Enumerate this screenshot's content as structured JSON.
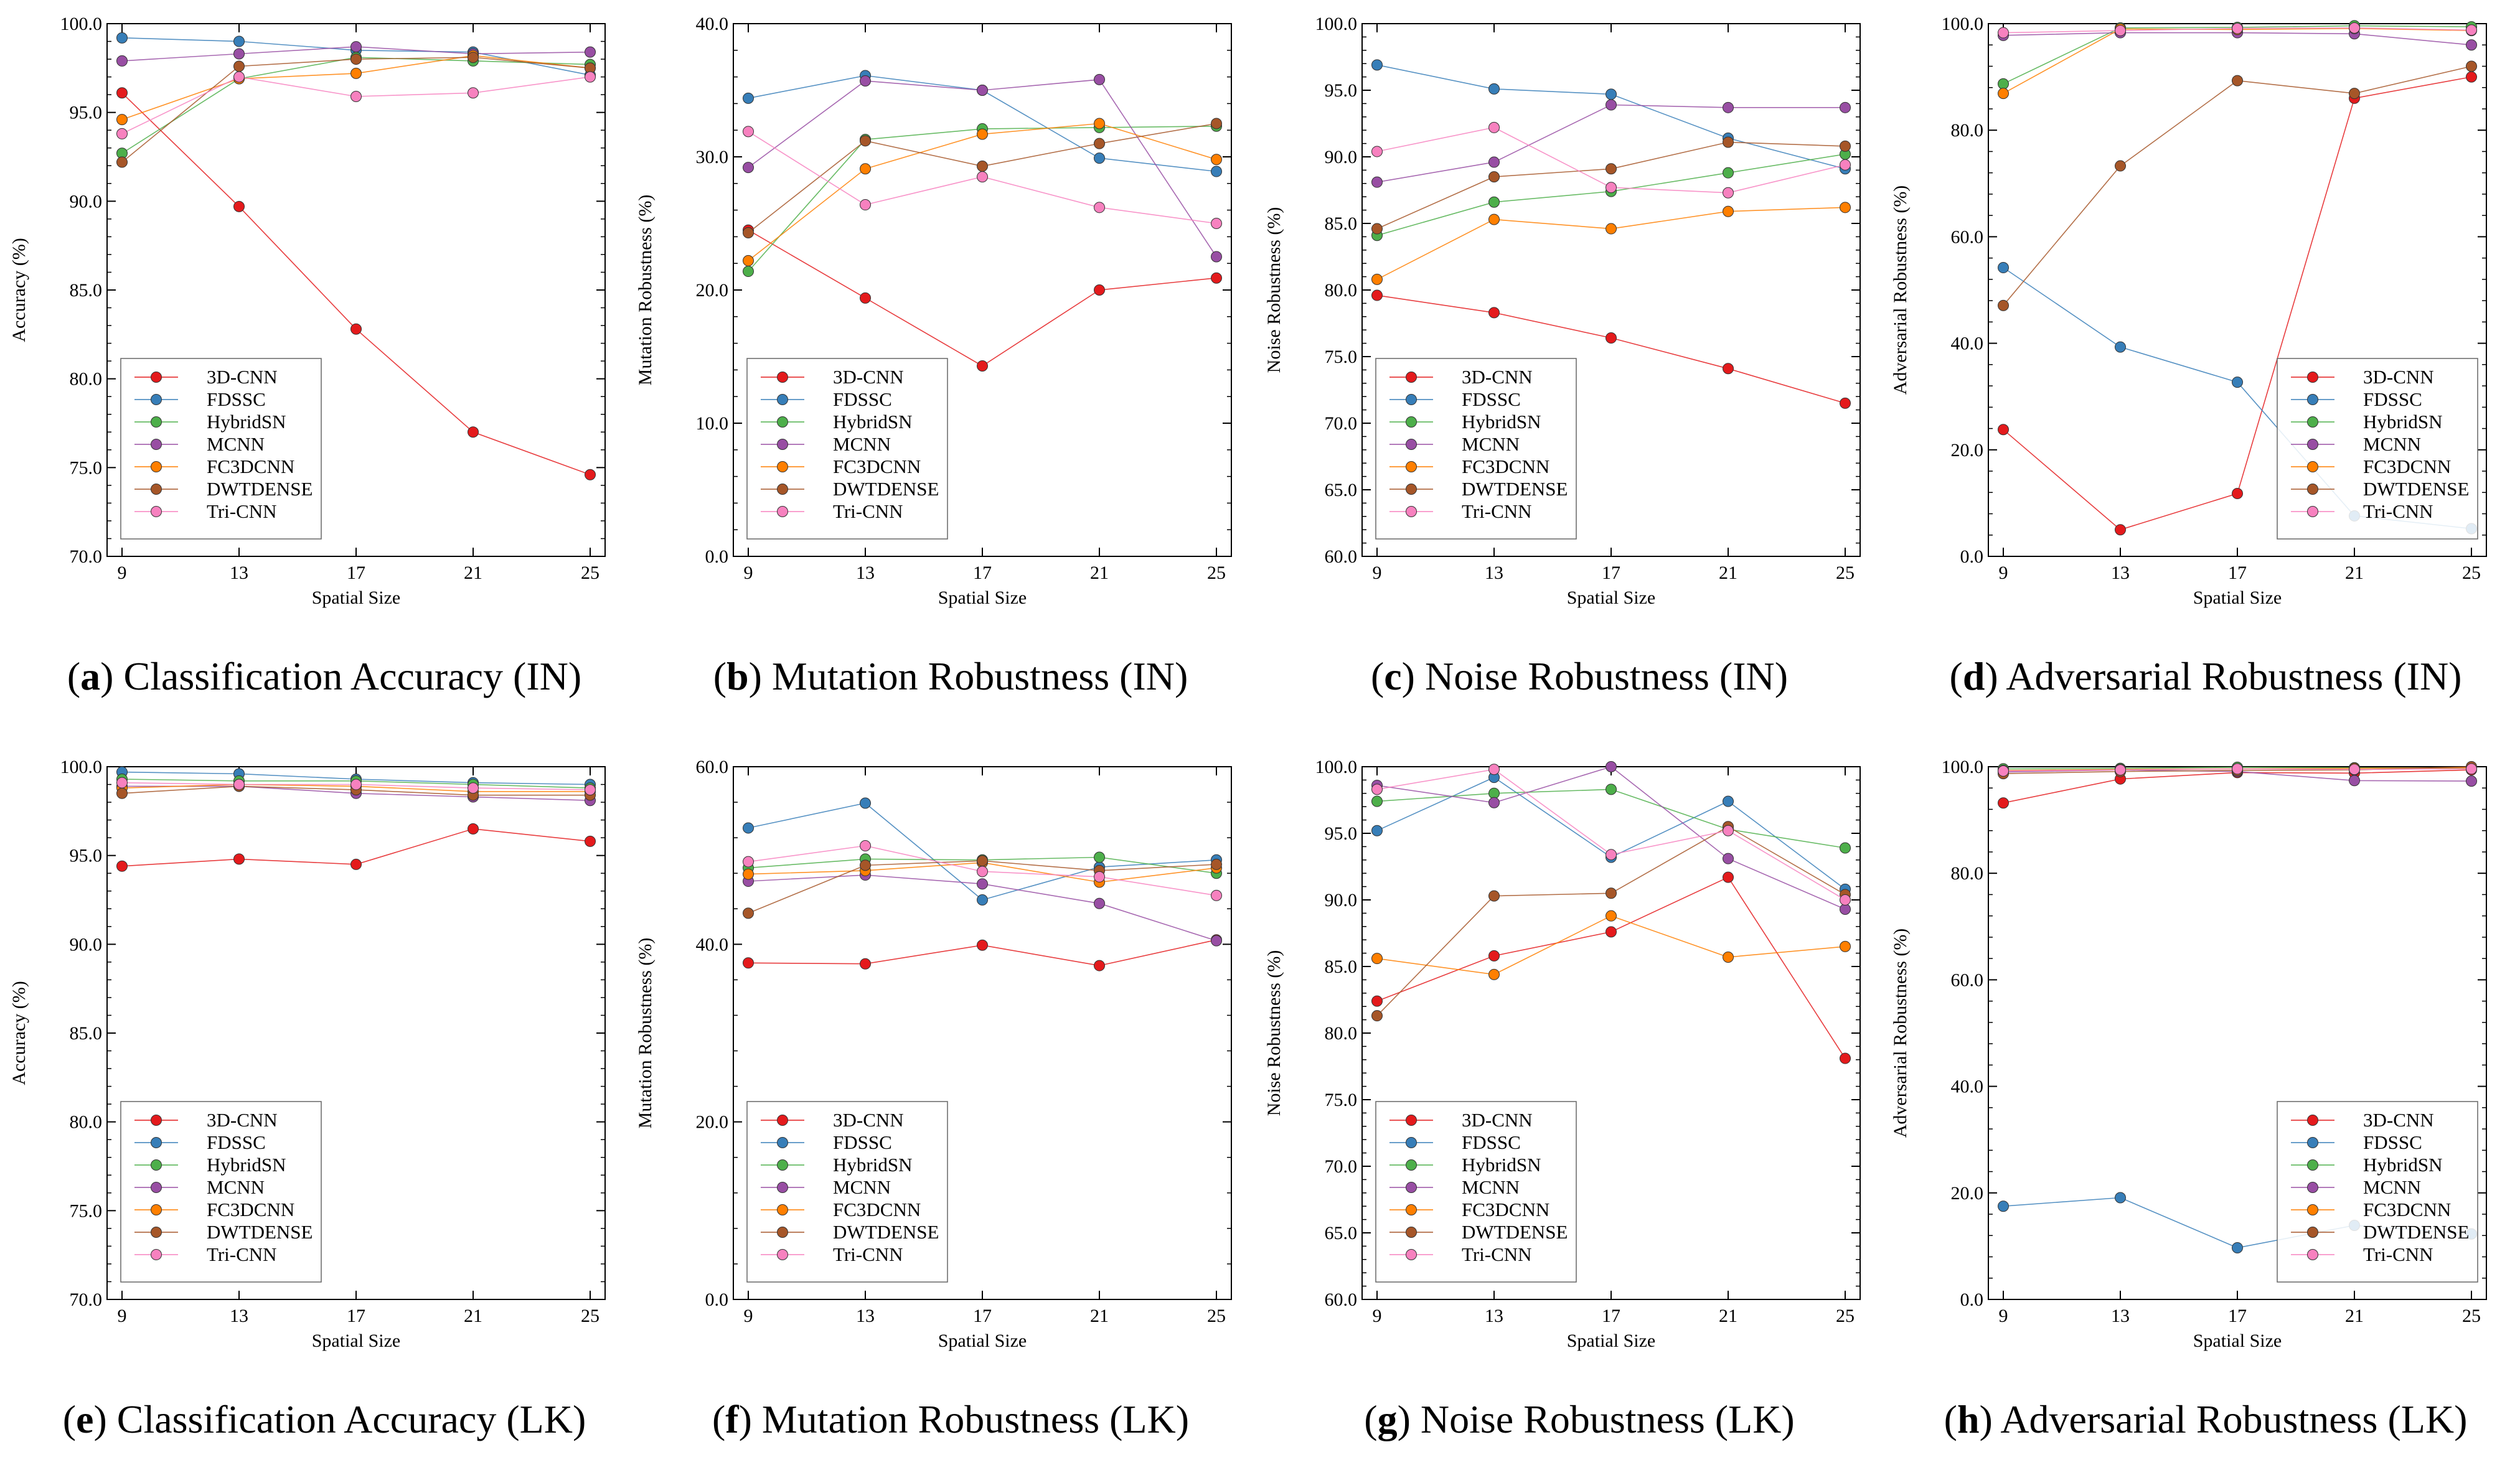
{
  "chart_data": [
    {
      "id": "a",
      "type": "line",
      "caption_letter": "a",
      "caption_text": "Classification Accuracy (IN)",
      "xlabel": "Spatial Size",
      "ylabel": "Accuracy (%)",
      "ylim": [
        70,
        100
      ],
      "yticks": [
        70,
        75,
        80,
        85,
        90,
        95,
        100
      ],
      "ydec": 1,
      "categories": [
        "9",
        "13",
        "17",
        "21",
        "25"
      ],
      "legend_position": "bottom-left",
      "series": [
        {
          "name": "3D-CNN",
          "color": "#e41a1c",
          "values": [
            96.1,
            89.7,
            82.8,
            77.0,
            74.6
          ]
        },
        {
          "name": "FDSSC",
          "color": "#377eb8",
          "values": [
            99.2,
            99.0,
            98.5,
            98.4,
            97.1
          ]
        },
        {
          "name": "HybridSN",
          "color": "#4daf4a",
          "values": [
            92.7,
            96.9,
            98.1,
            97.9,
            97.7
          ]
        },
        {
          "name": "MCNN",
          "color": "#984ea3",
          "values": [
            97.9,
            98.3,
            98.7,
            98.3,
            98.4
          ]
        },
        {
          "name": "FC3DCNN",
          "color": "#ff7f00",
          "values": [
            94.6,
            96.9,
            97.2,
            98.2,
            97.5
          ]
        },
        {
          "name": "DWTDENSE",
          "color": "#a65628",
          "values": [
            92.2,
            97.6,
            98.0,
            98.1,
            97.5
          ]
        },
        {
          "name": "Tri-CNN",
          "color": "#f781bf",
          "values": [
            93.8,
            97.0,
            95.9,
            96.1,
            97.0
          ]
        }
      ]
    },
    {
      "id": "b",
      "type": "line",
      "caption_letter": "b",
      "caption_text": "Mutation Robustness (IN)",
      "xlabel": "Spatial Size",
      "ylabel": "Mutation Robustness (%)",
      "ylim": [
        0,
        40
      ],
      "yticks": [
        0,
        10,
        20,
        30,
        40
      ],
      "ydec": 1,
      "categories": [
        "9",
        "13",
        "17",
        "21",
        "25"
      ],
      "legend_position": "bottom-left",
      "series": [
        {
          "name": "3D-CNN",
          "color": "#e41a1c",
          "values": [
            24.5,
            19.4,
            14.3,
            20.0,
            20.9
          ]
        },
        {
          "name": "FDSSC",
          "color": "#377eb8",
          "values": [
            34.4,
            36.1,
            35.0,
            29.9,
            28.9
          ]
        },
        {
          "name": "HybridSN",
          "color": "#4daf4a",
          "values": [
            21.4,
            31.3,
            32.1,
            32.2,
            32.3
          ]
        },
        {
          "name": "MCNN",
          "color": "#984ea3",
          "values": [
            29.2,
            35.7,
            35.0,
            35.8,
            22.5
          ]
        },
        {
          "name": "FC3DCNN",
          "color": "#ff7f00",
          "values": [
            22.2,
            29.1,
            31.7,
            32.5,
            29.8
          ]
        },
        {
          "name": "DWTDENSE",
          "color": "#a65628",
          "values": [
            24.3,
            31.2,
            29.3,
            31.0,
            32.5
          ]
        },
        {
          "name": "Tri-CNN",
          "color": "#f781bf",
          "values": [
            31.9,
            26.4,
            28.5,
            26.2,
            25.0
          ]
        }
      ]
    },
    {
      "id": "c",
      "type": "line",
      "caption_letter": "c",
      "caption_text": "Noise Robustness (IN)",
      "xlabel": "Spatial Size",
      "ylabel": "Noise Robustness (%)",
      "ylim": [
        60,
        100
      ],
      "yticks": [
        60,
        65,
        70,
        75,
        80,
        85,
        90,
        95,
        100
      ],
      "ydec": 1,
      "categories": [
        "9",
        "13",
        "17",
        "21",
        "25"
      ],
      "legend_position": "bottom-left",
      "series": [
        {
          "name": "3D-CNN",
          "color": "#e41a1c",
          "values": [
            79.6,
            78.3,
            76.4,
            74.1,
            71.5
          ]
        },
        {
          "name": "FDSSC",
          "color": "#377eb8",
          "values": [
            96.9,
            95.1,
            94.7,
            91.4,
            89.1
          ]
        },
        {
          "name": "HybridSN",
          "color": "#4daf4a",
          "values": [
            84.1,
            86.6,
            87.4,
            88.8,
            90.2
          ]
        },
        {
          "name": "MCNN",
          "color": "#984ea3",
          "values": [
            88.1,
            89.6,
            93.9,
            93.7,
            93.7
          ]
        },
        {
          "name": "FC3DCNN",
          "color": "#ff7f00",
          "values": [
            80.8,
            85.3,
            84.6,
            85.9,
            86.2
          ]
        },
        {
          "name": "DWTDENSE",
          "color": "#a65628",
          "values": [
            84.6,
            88.5,
            89.1,
            91.1,
            90.8
          ]
        },
        {
          "name": "Tri-CNN",
          "color": "#f781bf",
          "values": [
            90.4,
            92.2,
            87.7,
            87.3,
            89.4
          ]
        }
      ]
    },
    {
      "id": "d",
      "type": "line",
      "caption_letter": "d",
      "caption_text": "Adversarial Robustness (IN)",
      "xlabel": "Spatial Size",
      "ylabel": "Adversarial Robustness (%)",
      "ylim": [
        0,
        100
      ],
      "yticks": [
        0,
        20,
        40,
        60,
        80,
        100
      ],
      "ydec": 1,
      "categories": [
        "9",
        "13",
        "17",
        "21",
        "25"
      ],
      "legend_position": "bottom-right",
      "series": [
        {
          "name": "3D-CNN",
          "color": "#e41a1c",
          "values": [
            23.8,
            5.0,
            11.8,
            86.0,
            90.0
          ]
        },
        {
          "name": "FDSSC",
          "color": "#377eb8",
          "values": [
            54.2,
            39.3,
            32.7,
            7.6,
            5.2
          ]
        },
        {
          "name": "HybridSN",
          "color": "#4daf4a",
          "values": [
            88.7,
            99.2,
            99.3,
            99.6,
            99.4
          ]
        },
        {
          "name": "MCNN",
          "color": "#984ea3",
          "values": [
            97.8,
            98.3,
            98.3,
            98.1,
            96.0
          ]
        },
        {
          "name": "FC3DCNN",
          "color": "#ff7f00",
          "values": [
            86.9,
            99.0,
            98.9,
            99.1,
            98.7
          ]
        },
        {
          "name": "DWTDENSE",
          "color": "#a65628",
          "values": [
            47.1,
            73.3,
            89.3,
            86.9,
            92.0
          ]
        },
        {
          "name": "Tri-CNN",
          "color": "#f781bf",
          "values": [
            98.3,
            98.7,
            99.1,
            99.2,
            98.8
          ]
        }
      ]
    },
    {
      "id": "e",
      "type": "line",
      "caption_letter": "e",
      "caption_text": "Classification Accuracy (LK)",
      "xlabel": "Spatial Size",
      "ylabel": "Accuracy (%)",
      "ylim": [
        70,
        100
      ],
      "yticks": [
        70,
        75,
        80,
        85,
        90,
        95,
        100
      ],
      "ydec": 1,
      "categories": [
        "9",
        "13",
        "17",
        "21",
        "25"
      ],
      "legend_position": "bottom-left",
      "series": [
        {
          "name": "3D-CNN",
          "color": "#e41a1c",
          "values": [
            94.4,
            94.8,
            94.5,
            96.5,
            95.8
          ]
        },
        {
          "name": "FDSSC",
          "color": "#377eb8",
          "values": [
            99.7,
            99.6,
            99.3,
            99.1,
            99.0
          ]
        },
        {
          "name": "HybridSN",
          "color": "#4daf4a",
          "values": [
            99.3,
            99.2,
            99.2,
            99.0,
            98.8
          ]
        },
        {
          "name": "MCNN",
          "color": "#984ea3",
          "values": [
            98.9,
            98.9,
            98.5,
            98.3,
            98.1
          ]
        },
        {
          "name": "FC3DCNN",
          "color": "#ff7f00",
          "values": [
            98.8,
            99.0,
            98.9,
            98.6,
            98.6
          ]
        },
        {
          "name": "DWTDENSE",
          "color": "#a65628",
          "values": [
            98.5,
            98.9,
            98.7,
            98.4,
            98.4
          ]
        },
        {
          "name": "Tri-CNN",
          "color": "#f781bf",
          "values": [
            99.1,
            99.0,
            99.0,
            98.8,
            98.7
          ]
        }
      ]
    },
    {
      "id": "f",
      "type": "line",
      "caption_letter": "f",
      "caption_text": "Mutation Robustness (LK)",
      "xlabel": "Spatial Size",
      "ylabel": "Mutation Robustness (%)",
      "ylim": [
        0,
        60
      ],
      "yticks": [
        0,
        20,
        40,
        60
      ],
      "ydec": 1,
      "categories": [
        "9",
        "13",
        "17",
        "21",
        "25"
      ],
      "legend_position": "bottom-left",
      "series": [
        {
          "name": "3D-CNN",
          "color": "#e41a1c",
          "values": [
            37.9,
            37.8,
            39.9,
            37.6,
            40.5
          ]
        },
        {
          "name": "FDSSC",
          "color": "#377eb8",
          "values": [
            53.1,
            55.9,
            45.0,
            48.7,
            49.5
          ]
        },
        {
          "name": "HybridSN",
          "color": "#4daf4a",
          "values": [
            48.6,
            49.6,
            49.5,
            49.8,
            48.0
          ]
        },
        {
          "name": "MCNN",
          "color": "#984ea3",
          "values": [
            47.1,
            47.8,
            46.8,
            44.6,
            40.4
          ]
        },
        {
          "name": "FC3DCNN",
          "color": "#ff7f00",
          "values": [
            47.9,
            48.3,
            49.2,
            47.0,
            48.6
          ]
        },
        {
          "name": "DWTDENSE",
          "color": "#a65628",
          "values": [
            43.5,
            48.9,
            49.4,
            48.3,
            49.0
          ]
        },
        {
          "name": "Tri-CNN",
          "color": "#f781bf",
          "values": [
            49.3,
            51.1,
            48.2,
            47.6,
            45.5
          ]
        }
      ]
    },
    {
      "id": "g",
      "type": "line",
      "caption_letter": "g",
      "caption_text": "Noise Robustness (LK)",
      "xlabel": "Spatial Size",
      "ylabel": "Noise Robustness (%)",
      "ylim": [
        60,
        100
      ],
      "yticks": [
        60,
        65,
        70,
        75,
        80,
        85,
        90,
        95,
        100
      ],
      "ydec": 1,
      "categories": [
        "9",
        "13",
        "17",
        "21",
        "25"
      ],
      "legend_position": "bottom-left",
      "series": [
        {
          "name": "3D-CNN",
          "color": "#e41a1c",
          "values": [
            82.4,
            85.8,
            87.6,
            91.7,
            78.1
          ]
        },
        {
          "name": "FDSSC",
          "color": "#377eb8",
          "values": [
            95.2,
            99.2,
            93.2,
            97.4,
            90.8
          ]
        },
        {
          "name": "HybridSN",
          "color": "#4daf4a",
          "values": [
            97.4,
            98.0,
            98.3,
            95.3,
            93.9
          ]
        },
        {
          "name": "MCNN",
          "color": "#984ea3",
          "values": [
            98.6,
            97.3,
            100.0,
            93.1,
            89.3
          ]
        },
        {
          "name": "FC3DCNN",
          "color": "#ff7f00",
          "values": [
            85.6,
            84.4,
            88.8,
            85.7,
            86.5
          ]
        },
        {
          "name": "DWTDENSE",
          "color": "#a65628",
          "values": [
            81.3,
            90.3,
            90.5,
            95.5,
            90.4
          ]
        },
        {
          "name": "Tri-CNN",
          "color": "#f781bf",
          "values": [
            98.3,
            99.8,
            93.4,
            95.2,
            90.0
          ]
        }
      ]
    },
    {
      "id": "h",
      "type": "line",
      "caption_letter": "h",
      "caption_text": "Adversarial Robustness (LK)",
      "xlabel": "Spatial Size",
      "ylabel": "Adversarial Robustness (%)",
      "ylim": [
        0,
        100
      ],
      "yticks": [
        0,
        20,
        40,
        60,
        80,
        100
      ],
      "ydec": 1,
      "categories": [
        "9",
        "13",
        "17",
        "21",
        "25"
      ],
      "legend_position": "bottom-right",
      "series": [
        {
          "name": "3D-CNN",
          "color": "#e41a1c",
          "values": [
            93.2,
            97.7,
            98.9,
            98.8,
            99.4
          ]
        },
        {
          "name": "FDSSC",
          "color": "#377eb8",
          "values": [
            17.5,
            19.1,
            9.7,
            13.9,
            12.3
          ]
        },
        {
          "name": "HybridSN",
          "color": "#4daf4a",
          "values": [
            99.6,
            99.7,
            99.9,
            99.8,
            99.7
          ]
        },
        {
          "name": "MCNN",
          "color": "#984ea3",
          "values": [
            99.0,
            99.4,
            99.1,
            97.4,
            97.3
          ]
        },
        {
          "name": "FC3DCNN",
          "color": "#ff7f00",
          "values": [
            99.3,
            99.5,
            99.6,
            99.7,
            99.8
          ]
        },
        {
          "name": "DWTDENSE",
          "color": "#a65628",
          "values": [
            98.7,
            99.1,
            99.3,
            99.4,
            100.0
          ]
        },
        {
          "name": "Tri-CNN",
          "color": "#f781bf",
          "values": [
            99.2,
            99.4,
            99.6,
            99.5,
            99.6
          ]
        }
      ]
    }
  ]
}
